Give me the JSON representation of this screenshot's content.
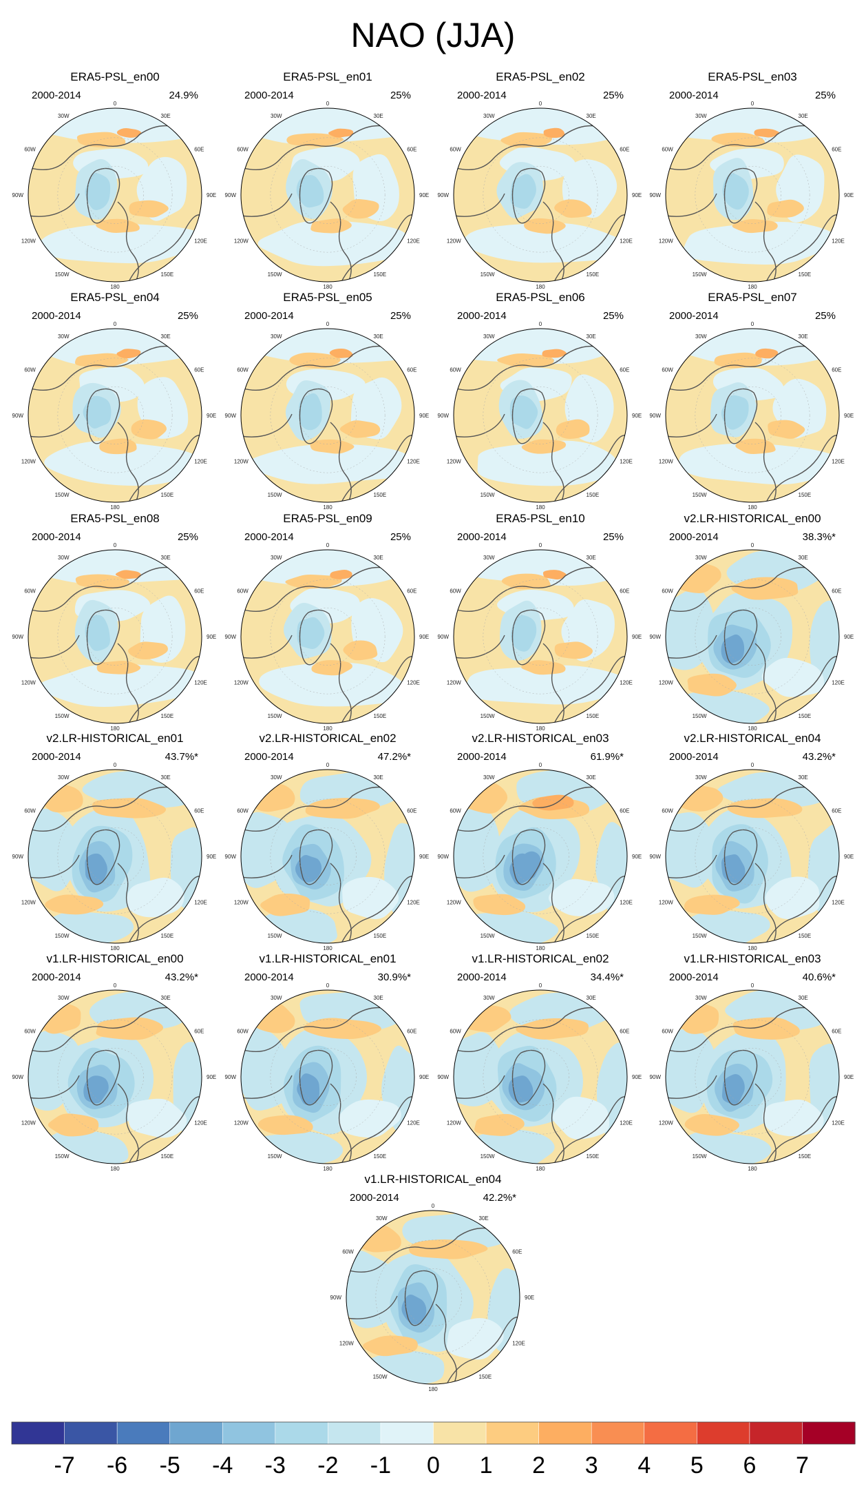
{
  "figure": {
    "title": "NAO (JJA)"
  },
  "icons": {
    "coastline": "coastline-line",
    "grid": "lat-lon-grid-lines"
  },
  "chart_data": {
    "type": "heatmap",
    "projection": "north-polar-stereographic",
    "period": "2000-2014",
    "longitude_labels": [
      "180",
      "150W",
      "150E",
      "120W",
      "120E",
      "90W",
      "90E",
      "60W",
      "60E",
      "30W",
      "30E",
      "0"
    ],
    "panels": [
      {
        "name": "ERA5-PSL_en00",
        "period": "2000-2014",
        "variance": "24.9%",
        "group": "era5"
      },
      {
        "name": "ERA5-PSL_en01",
        "period": "2000-2014",
        "variance": "25%",
        "group": "era5"
      },
      {
        "name": "ERA5-PSL_en02",
        "period": "2000-2014",
        "variance": "25%",
        "group": "era5"
      },
      {
        "name": "ERA5-PSL_en03",
        "period": "2000-2014",
        "variance": "25%",
        "group": "era5"
      },
      {
        "name": "ERA5-PSL_en04",
        "period": "2000-2014",
        "variance": "25%",
        "group": "era5"
      },
      {
        "name": "ERA5-PSL_en05",
        "period": "2000-2014",
        "variance": "25%",
        "group": "era5"
      },
      {
        "name": "ERA5-PSL_en06",
        "period": "2000-2014",
        "variance": "25%",
        "group": "era5"
      },
      {
        "name": "ERA5-PSL_en07",
        "period": "2000-2014",
        "variance": "25%",
        "group": "era5"
      },
      {
        "name": "ERA5-PSL_en08",
        "period": "2000-2014",
        "variance": "25%",
        "group": "era5"
      },
      {
        "name": "ERA5-PSL_en09",
        "period": "2000-2014",
        "variance": "25%",
        "group": "era5"
      },
      {
        "name": "ERA5-PSL_en10",
        "period": "2000-2014",
        "variance": "25%",
        "group": "era5"
      },
      {
        "name": "v2.LR-HISTORICAL_en00",
        "period": "2000-2014",
        "variance": "38.3%*",
        "group": "model"
      },
      {
        "name": "v2.LR-HISTORICAL_en01",
        "period": "2000-2014",
        "variance": "43.7%*",
        "group": "model"
      },
      {
        "name": "v2.LR-HISTORICAL_en02",
        "period": "2000-2014",
        "variance": "47.2%*",
        "group": "model"
      },
      {
        "name": "v2.LR-HISTORICAL_en03",
        "period": "2000-2014",
        "variance": "61.9%*",
        "group": "model"
      },
      {
        "name": "v2.LR-HISTORICAL_en04",
        "period": "2000-2014",
        "variance": "43.2%*",
        "group": "model"
      },
      {
        "name": "v1.LR-HISTORICAL_en00",
        "period": "2000-2014",
        "variance": "43.2%*",
        "group": "model"
      },
      {
        "name": "v1.LR-HISTORICAL_en01",
        "period": "2000-2014",
        "variance": "30.9%*",
        "group": "model"
      },
      {
        "name": "v1.LR-HISTORICAL_en02",
        "period": "2000-2014",
        "variance": "34.4%*",
        "group": "model"
      },
      {
        "name": "v1.LR-HISTORICAL_en03",
        "period": "2000-2014",
        "variance": "40.6%*",
        "group": "model"
      },
      {
        "name": "v1.LR-HISTORICAL_en04",
        "period": "2000-2014",
        "variance": "42.2%*",
        "group": "model"
      }
    ],
    "colorbar": {
      "tick_labels": [
        "-7",
        "-6",
        "-5",
        "-4",
        "-3",
        "-2",
        "-1",
        "0",
        "1",
        "2",
        "3",
        "4",
        "5",
        "6",
        "7"
      ],
      "colors": [
        "#313695",
        "#3a56a5",
        "#4a7bbc",
        "#6fa6d0",
        "#90c4e0",
        "#abd9e9",
        "#c5e6ef",
        "#e0f3f8",
        "#f8e3a7",
        "#fdcc80",
        "#fdae61",
        "#f98e52",
        "#f46d43",
        "#dd3d2d",
        "#c6252a",
        "#a50026"
      ]
    }
  }
}
